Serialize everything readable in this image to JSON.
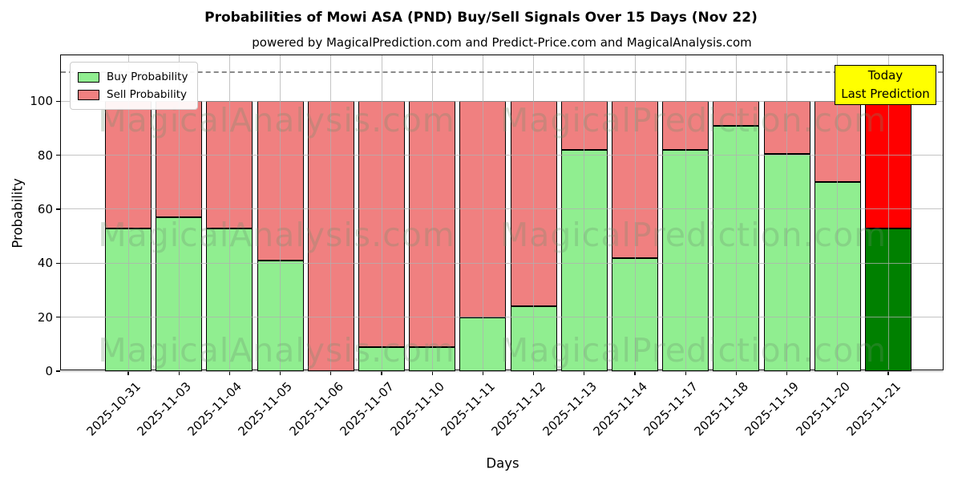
{
  "title": "Probabilities of Mowi ASA (PND) Buy/Sell Signals Over 15 Days (Nov 22)",
  "subtitle": "powered by MagicalPrediction.com and Predict-Price.com and MagicalAnalysis.com",
  "annotation": {
    "line1": "Today",
    "line2": "Last Prediction",
    "bg_color": "#FFFF00"
  },
  "watermarks": {
    "left": "MagicalAnalysis.com",
    "right": "MagicalPrediction.com"
  },
  "chart_data": {
    "type": "bar",
    "stacked": true,
    "title": "Probabilities of Mowi ASA (PND) Buy/Sell Signals Over 15 Days (Nov 22)",
    "xlabel": "Days",
    "ylabel": "Probability",
    "ylim": [
      0,
      117
    ],
    "yticks": [
      0,
      20,
      40,
      60,
      80,
      100
    ],
    "grid": true,
    "legend_position": "upper-left",
    "dashed_guide_y": 111,
    "categories": [
      "2025-10-31",
      "2025-11-03",
      "2025-11-04",
      "2025-11-05",
      "2025-11-06",
      "2025-11-07",
      "2025-11-10",
      "2025-11-11",
      "2025-11-12",
      "2025-11-13",
      "2025-11-14",
      "2025-11-17",
      "2025-11-18",
      "2025-11-19",
      "2025-11-20",
      "2025-11-21"
    ],
    "series": [
      {
        "name": "Buy Probability",
        "color": "#90EE90",
        "values": [
          53,
          57,
          53,
          41,
          0,
          9,
          9,
          20,
          24,
          82,
          42,
          82,
          91,
          80.5,
          70,
          53
        ]
      },
      {
        "name": "Sell Probability",
        "color": "#F08080",
        "values": [
          47,
          43,
          47,
          59,
          100,
          91,
          91,
          80,
          76,
          18,
          58,
          18,
          9,
          19.5,
          30,
          47
        ]
      }
    ],
    "last_bar_highlight": {
      "buy_color": "#008000",
      "sell_color": "#FF0000"
    }
  }
}
